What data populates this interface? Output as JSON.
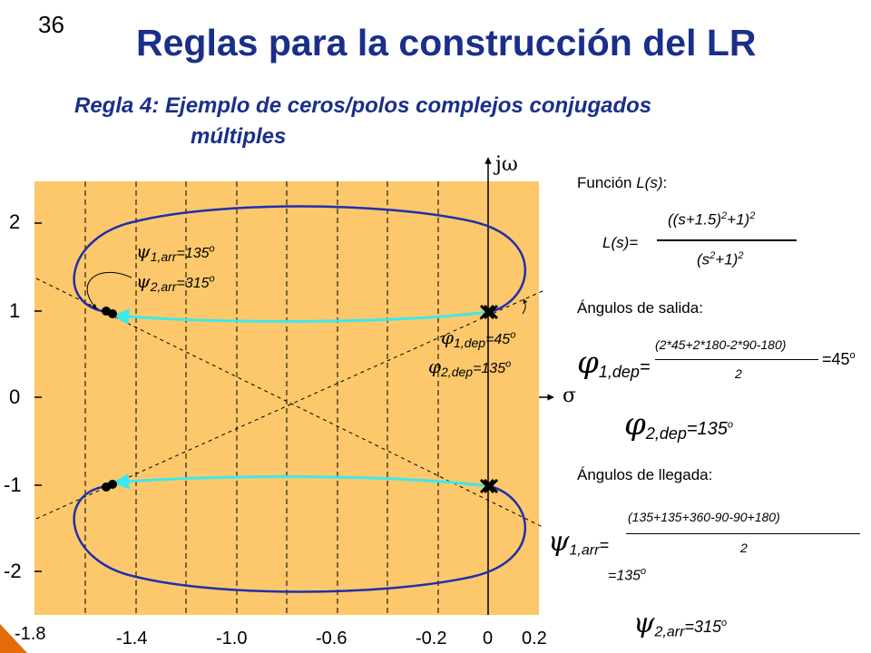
{
  "slide_number": "36",
  "title": "Reglas para la construcción del LR",
  "subtitle": {
    "line1": "Regla 4: Ejemplo de ceros/polos complejos conjugados",
    "line2": "múltiples"
  },
  "plot": {
    "xlim": [
      -1.8,
      0.2
    ],
    "ylim": [
      -2.5,
      2.5
    ],
    "background_color": "#fcc86b",
    "locus_color": "#1f2fae",
    "arrow_color": "#3de8ea",
    "x_ticks": [
      {
        "label": "-1.8"
      },
      {
        "label": "-1.4"
      },
      {
        "label": "-1.0"
      },
      {
        "label": "-0.6"
      },
      {
        "label": "-0.2"
      },
      {
        "label": "0"
      },
      {
        "label": "0.2"
      }
    ],
    "y_ticks": [
      {
        "label": "2"
      },
      {
        "label": "1"
      },
      {
        "label": "0"
      },
      {
        "label": "-1"
      },
      {
        "label": "-2"
      }
    ],
    "jw_label": "jω",
    "sigma_label": "σ",
    "psi1_label": "ψ",
    "psi1_sub": "1,arr",
    "psi1_val": "=135",
    "psi2_label": "ψ",
    "psi2_sub": "2,arr",
    "psi2_val": "=315",
    "phi1_label": "φ",
    "phi1_sub": "1,dep",
    "phi1_val": "=45",
    "phi2_label": "φ",
    "phi2_sub": "2,dep",
    "phi2_val": "=135",
    "degree_mark": "o"
  },
  "right_panel": {
    "funcion_label": "Función ",
    "funcion_italic": "L(s)",
    "funcion_colon": ":",
    "ls_label": "L(s)=",
    "ls_num_base": "((s+1.5)",
    "ls_num_exp1": "2",
    "ls_num_mid": "+1)",
    "ls_num_exp2": "2",
    "ls_den_base": "(s",
    "ls_den_exp1": "2",
    "ls_den_mid": "+1)",
    "ls_den_exp2": "2",
    "salida_label": "Ángulos de salida:",
    "phi1_symbol": "φ",
    "phi1_sub": "1,dep",
    "phi1_eq": "=",
    "phi1_num": "(2*45+2*180-2*90-180)",
    "phi1_den": "2",
    "phi1_result": "=45",
    "phi2_symbol": "φ",
    "phi2_sub": "2,dep",
    "phi2_result": "=135",
    "llegada_label": "Ángulos de llegada:",
    "psi1_symbol": "ψ",
    "psi1_sub": "1,arr",
    "psi1_eq": "=",
    "psi1_num": "(135+135+360-90-90+180)",
    "psi1_den": "2",
    "psi1_result": "=135",
    "psi2_symbol": "ψ",
    "psi2_sub": "2,arr",
    "psi2_result": "=315",
    "degree_mark": "o"
  }
}
